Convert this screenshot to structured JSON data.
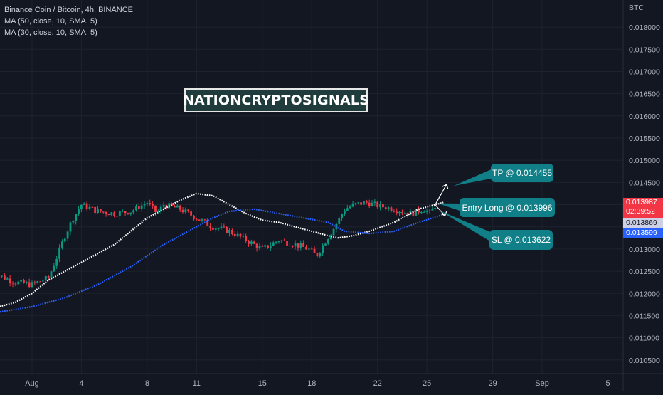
{
  "header": {
    "title": "Binance Coin / Bitcoin, 4h, BINANCE",
    "indicators": [
      "MA (50, close, 10, SMA, 5)",
      "MA (30, close, 10, SMA, 5)"
    ]
  },
  "watermark": "NATIONCRYPTOSIGNALS",
  "chart_data": {
    "type": "candlestick",
    "symbol": "Binance Coin / Bitcoin",
    "interval": "4h",
    "exchange": "BINANCE",
    "currency": "BTC",
    "ylim": [
      0.0102,
      0.01825
    ],
    "yticks": [
      "0.018000",
      "0.017500",
      "0.017000",
      "0.016500",
      "0.016000",
      "0.015500",
      "0.015000",
      "0.014500",
      "0.014000",
      "0.013500",
      "0.013000",
      "0.012500",
      "0.012000",
      "0.011500",
      "0.011000",
      "0.010500"
    ],
    "xticks": [
      {
        "label": "Aug",
        "day": 1
      },
      {
        "label": "4",
        "day": 4
      },
      {
        "label": "8",
        "day": 8
      },
      {
        "label": "11",
        "day": 11
      },
      {
        "label": "15",
        "day": 15
      },
      {
        "label": "18",
        "day": 18
      },
      {
        "label": "22",
        "day": 22
      },
      {
        "label": "25",
        "day": 25
      },
      {
        "label": "29",
        "day": 29
      },
      {
        "label": "Sep",
        "day": 32
      },
      {
        "label": "5",
        "day": 36
      }
    ],
    "price_path": [
      [
        -1.5,
        0.01255
      ],
      [
        -1,
        0.0124
      ],
      [
        0,
        0.01225
      ],
      [
        1,
        0.0122
      ],
      [
        2,
        0.01235
      ],
      [
        2.6,
        0.0129
      ],
      [
        3,
        0.0133
      ],
      [
        3.5,
        0.0137
      ],
      [
        4,
        0.014
      ],
      [
        5,
        0.01385
      ],
      [
        6,
        0.0138
      ],
      [
        7,
        0.01385
      ],
      [
        8,
        0.01405
      ],
      [
        8.6,
        0.0138
      ],
      [
        9,
        0.014
      ],
      [
        10,
        0.0139
      ],
      [
        11,
        0.0137
      ],
      [
        12,
        0.0135
      ],
      [
        13,
        0.0134
      ],
      [
        14,
        0.0132
      ],
      [
        15,
        0.013
      ],
      [
        16,
        0.0132
      ],
      [
        17,
        0.0131
      ],
      [
        17.8,
        0.013
      ],
      [
        18.3,
        0.01285
      ],
      [
        18.7,
        0.0131
      ],
      [
        19.4,
        0.0135
      ],
      [
        20,
        0.0139
      ],
      [
        20.6,
        0.014
      ],
      [
        21.3,
        0.01405
      ],
      [
        22,
        0.01398
      ],
      [
        23,
        0.0139
      ],
      [
        24,
        0.0138
      ],
      [
        24.8,
        0.0139
      ],
      [
        25.2,
        0.0138
      ],
      [
        25.5,
        0.01398
      ]
    ],
    "series": [
      {
        "name": "MA (50, close, 10, SMA, 5)",
        "color": "#ffffff",
        "points": [
          [
            -1.5,
            0.01165
          ],
          [
            0,
            0.0118
          ],
          [
            1,
            0.012
          ],
          [
            2,
            0.0123
          ],
          [
            3,
            0.0125
          ],
          [
            4,
            0.0127
          ],
          [
            5,
            0.0129
          ],
          [
            6,
            0.0131
          ],
          [
            7,
            0.0134
          ],
          [
            8,
            0.0137
          ],
          [
            9,
            0.0139
          ],
          [
            10,
            0.0141
          ],
          [
            11,
            0.01425
          ],
          [
            12,
            0.0142
          ],
          [
            13,
            0.014
          ],
          [
            14,
            0.0138
          ],
          [
            15,
            0.01365
          ],
          [
            16,
            0.0136
          ],
          [
            17,
            0.0135
          ],
          [
            18,
            0.0134
          ],
          [
            19,
            0.0133
          ],
          [
            19.6,
            0.01325
          ],
          [
            20.5,
            0.0133
          ],
          [
            21.5,
            0.0134
          ],
          [
            23,
            0.0136
          ],
          [
            24.5,
            0.0139
          ],
          [
            26,
            0.01405
          ]
        ]
      },
      {
        "name": "MA (30, close, 10, SMA, 5)",
        "color": "#2962ff",
        "points": [
          [
            -1.5,
            0.01155
          ],
          [
            1,
            0.0117
          ],
          [
            3,
            0.0119
          ],
          [
            5,
            0.0122
          ],
          [
            7,
            0.0126
          ],
          [
            9,
            0.0131
          ],
          [
            10.5,
            0.0134
          ],
          [
            12,
            0.0137
          ],
          [
            13,
            0.01385
          ],
          [
            14.5,
            0.0139
          ],
          [
            16,
            0.0138
          ],
          [
            17.5,
            0.0137
          ],
          [
            19,
            0.0136
          ],
          [
            20,
            0.0134
          ],
          [
            21.5,
            0.01335
          ],
          [
            23,
            0.0134
          ],
          [
            24.5,
            0.0136
          ],
          [
            26.2,
            0.0138
          ]
        ]
      }
    ],
    "annotations": [
      {
        "label": "TP @ 0.014455",
        "price": 0.014455
      },
      {
        "label": "Entry Long @ 0.013996",
        "price": 0.013996
      },
      {
        "label": "SL @ 0.013622",
        "price": 0.013622
      }
    ],
    "price_scale_tags": [
      {
        "label": "0.013987",
        "sub": "02:39:52",
        "color": "#f23645",
        "price": 0.013987
      },
      {
        "label": "0.013869",
        "color": "#ced0e6",
        "text_color": "#131722",
        "price": 0.013869
      },
      {
        "label": "0.013599",
        "color": "#2962ff",
        "price": 0.013599
      }
    ],
    "colors": {
      "up": "#089981",
      "down": "#f23645",
      "background": "#131722",
      "callout": "#117f87"
    }
  }
}
